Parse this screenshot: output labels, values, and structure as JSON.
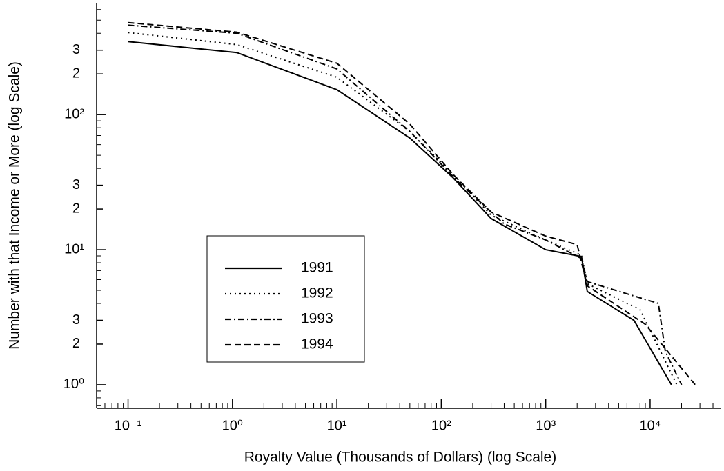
{
  "chart_data": {
    "type": "line",
    "xlabel": "Royalty Value (Thousands of Dollars) (log Scale)",
    "ylabel": "Number with that Income or More (log Scale)",
    "xscale": "log",
    "yscale": "log",
    "xlim": [
      0.05,
      48000
    ],
    "ylim": [
      0.67,
      665
    ],
    "xticks": [
      {
        "value": 0.1,
        "label": "10⁻¹"
      },
      {
        "value": 1,
        "label": "10⁰"
      },
      {
        "value": 10,
        "label": "10¹"
      },
      {
        "value": 100,
        "label": "10²"
      },
      {
        "value": 1000,
        "label": "10³"
      },
      {
        "value": 10000,
        "label": "10⁴"
      }
    ],
    "minor_xticks": [
      0.06,
      0.07,
      0.08,
      0.09,
      0.2,
      0.3,
      0.4,
      0.5,
      0.6,
      0.7,
      0.8,
      0.9,
      2,
      3,
      4,
      5,
      6,
      7,
      8,
      9,
      20,
      30,
      40,
      50,
      60,
      70,
      80,
      90,
      200,
      300,
      400,
      500,
      600,
      700,
      800,
      900,
      2000,
      3000,
      4000,
      5000,
      6000,
      7000,
      8000,
      9000,
      20000,
      30000,
      40000
    ],
    "yticks": [
      {
        "value": 1,
        "label": "10⁰"
      },
      2,
      3,
      {
        "value": 10,
        "label": "10¹"
      },
      {
        "value": 20,
        "label": "2"
      },
      {
        "value": 30,
        "label": "3"
      },
      {
        "value": 100,
        "label": "10²"
      },
      {
        "value": 200,
        "label": "2"
      },
      {
        "value": 300,
        "label": "3"
      }
    ],
    "minor_yticks": [
      0.7,
      0.8,
      0.9,
      4,
      5,
      6,
      7,
      8,
      9,
      40,
      50,
      60,
      70,
      80,
      90,
      400,
      500,
      600
    ],
    "legend": "lower-left",
    "series": [
      {
        "name": "1991",
        "color": "#000000",
        "dash": "solid",
        "x": [
          0.1,
          1.1,
          10,
          50,
          130,
          300,
          1000,
          2200,
          2500,
          7000,
          16000
        ],
        "values": [
          347,
          288,
          153,
          67,
          34,
          17,
          10,
          8.9,
          4.9,
          3.0,
          1.0
        ]
      },
      {
        "name": "1992",
        "color": "#000000",
        "dash": "dotted",
        "x": [
          0.1,
          1.1,
          10,
          50,
          130,
          300,
          1000,
          2200,
          2500,
          8000,
          18000
        ],
        "values": [
          405,
          330,
          189,
          75,
          36,
          18,
          11.8,
          9.1,
          5.6,
          3.6,
          1.0
        ]
      },
      {
        "name": "1993",
        "color": "#000000",
        "dash": "dashdot",
        "x": [
          0.1,
          1.1,
          10,
          50,
          150,
          400,
          1000,
          2200,
          2500,
          12000,
          14000,
          20000
        ],
        "values": [
          460,
          400,
          218,
          75,
          31,
          15.5,
          11.8,
          8.6,
          5.8,
          4.0,
          1.76,
          1.0
        ]
      },
      {
        "name": "1994",
        "color": "#000000",
        "dash": "dashed",
        "x": [
          0.1,
          1.1,
          10,
          50,
          130,
          300,
          1000,
          2000,
          2500,
          9000,
          27000
        ],
        "values": [
          480,
          408,
          240,
          85,
          36,
          19,
          12.6,
          10.9,
          5.4,
          2.8,
          1.0
        ]
      }
    ]
  }
}
